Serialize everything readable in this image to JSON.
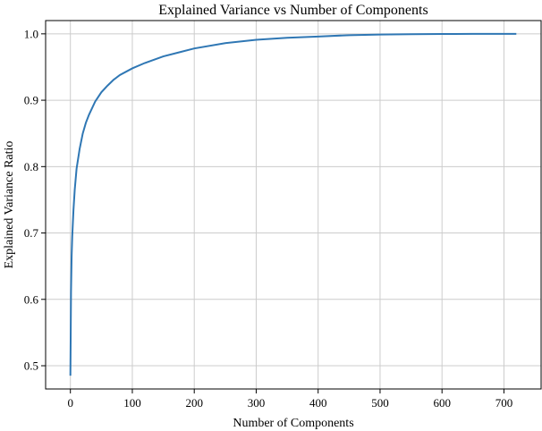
{
  "chart_data": {
    "type": "line",
    "title": "Explained Variance vs Number of Components",
    "xlabel": "Number of Components",
    "ylabel": "Explained Variance Ratio",
    "xlim": [
      -40,
      760
    ],
    "ylim": [
      0.465,
      1.02
    ],
    "xticks": [
      0,
      100,
      200,
      300,
      400,
      500,
      600,
      700
    ],
    "yticks": [
      0.5,
      0.6,
      0.7,
      0.8,
      0.9,
      1.0
    ],
    "xtick_labels": [
      "0",
      "100",
      "200",
      "300",
      "400",
      "500",
      "600",
      "700"
    ],
    "ytick_labels": [
      "0.5",
      "0.6",
      "0.7",
      "0.8",
      "0.9",
      "1.0"
    ],
    "grid": true,
    "line_color": "#2f77b4",
    "grid_color": "#cccccc",
    "series": [
      {
        "x": [
          0,
          1,
          2,
          3,
          5,
          7,
          10,
          15,
          20,
          25,
          30,
          40,
          50,
          60,
          70,
          80,
          100,
          120,
          150,
          175,
          200,
          250,
          300,
          350,
          400,
          450,
          500,
          550,
          600,
          650,
          700,
          720
        ],
        "values": [
          0.485,
          0.61,
          0.665,
          0.695,
          0.735,
          0.765,
          0.797,
          0.827,
          0.85,
          0.866,
          0.878,
          0.898,
          0.912,
          0.922,
          0.931,
          0.938,
          0.948,
          0.956,
          0.966,
          0.972,
          0.978,
          0.986,
          0.991,
          0.994,
          0.996,
          0.998,
          0.999,
          0.9995,
          0.9998,
          0.9999,
          1.0,
          1.0
        ]
      }
    ]
  }
}
